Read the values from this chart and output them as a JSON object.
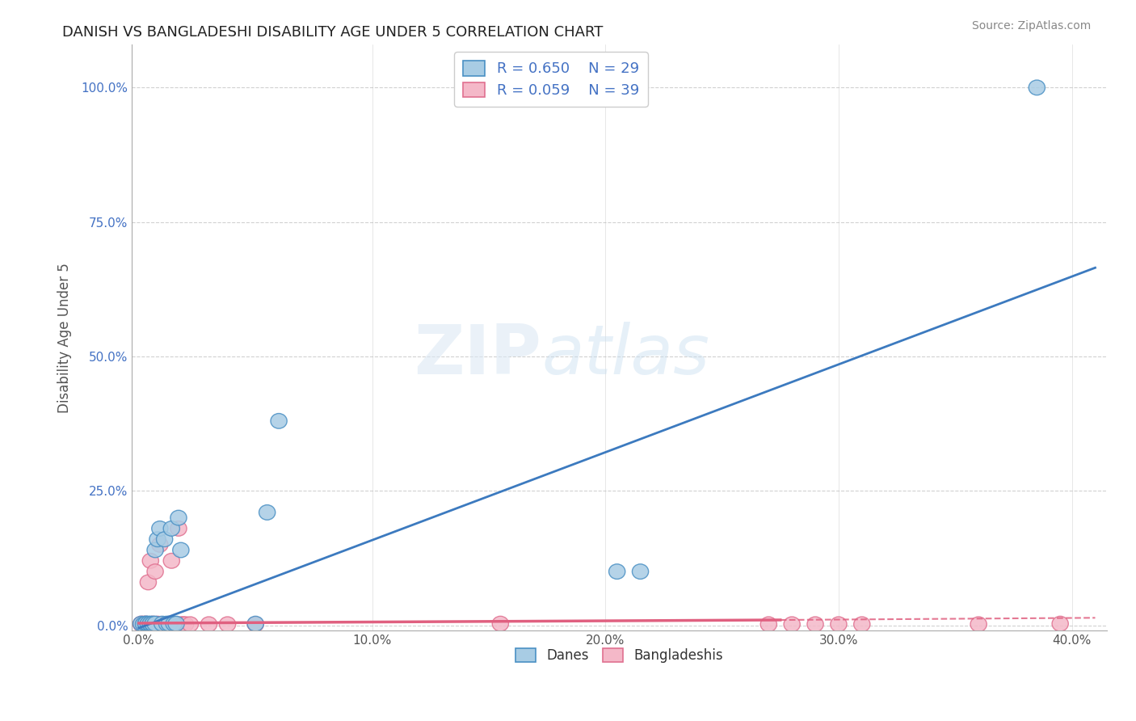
{
  "title": "DANISH VS BANGLADESHI DISABILITY AGE UNDER 5 CORRELATION CHART",
  "source": "Source: ZipAtlas.com",
  "ylabel": "Disability Age Under 5",
  "xlim": [
    -0.003,
    0.415
  ],
  "ylim": [
    -0.01,
    1.08
  ],
  "xticks": [
    0.0,
    0.1,
    0.2,
    0.3,
    0.4
  ],
  "yticks": [
    0.0,
    0.25,
    0.5,
    0.75,
    1.0
  ],
  "xtick_labels": [
    "0.0%",
    "10.0%",
    "20.0%",
    "30.0%",
    "40.0%"
  ],
  "ytick_labels": [
    "0.0%",
    "25.0%",
    "50.0%",
    "75.0%",
    "100.0%"
  ],
  "danes_color": "#a8cce4",
  "bangladesh_color": "#f4b8c8",
  "danes_edge_color": "#4a90c4",
  "bangladesh_edge_color": "#e07090",
  "danes_line_color": "#3c7abf",
  "bangladesh_line_color": "#e06080",
  "danes_R": 0.65,
  "danes_N": 29,
  "bangladesh_R": 0.059,
  "bangladesh_N": 39,
  "legend_text_color": "#4472c4",
  "danes_x": [
    0.001,
    0.002,
    0.003,
    0.003,
    0.004,
    0.004,
    0.005,
    0.005,
    0.006,
    0.006,
    0.007,
    0.007,
    0.008,
    0.009,
    0.01,
    0.011,
    0.012,
    0.013,
    0.014,
    0.015,
    0.016,
    0.017,
    0.018,
    0.05,
    0.055,
    0.06,
    0.205,
    0.215,
    0.385
  ],
  "danes_y": [
    0.003,
    0.002,
    0.003,
    0.003,
    0.002,
    0.003,
    0.002,
    0.003,
    0.002,
    0.003,
    0.003,
    0.14,
    0.16,
    0.18,
    0.003,
    0.16,
    0.003,
    0.003,
    0.18,
    0.003,
    0.003,
    0.2,
    0.14,
    0.003,
    0.21,
    0.38,
    0.1,
    0.1,
    1.0
  ],
  "bangladesh_x": [
    0.001,
    0.001,
    0.002,
    0.002,
    0.003,
    0.003,
    0.004,
    0.004,
    0.005,
    0.005,
    0.006,
    0.006,
    0.007,
    0.008,
    0.008,
    0.009,
    0.01,
    0.011,
    0.012,
    0.013,
    0.014,
    0.015,
    0.016,
    0.017,
    0.018,
    0.019,
    0.02,
    0.022,
    0.03,
    0.038,
    0.05,
    0.155,
    0.27,
    0.28,
    0.29,
    0.3,
    0.31,
    0.36,
    0.395
  ],
  "bangladesh_y": [
    0.002,
    0.003,
    0.002,
    0.003,
    0.002,
    0.003,
    0.002,
    0.08,
    0.002,
    0.12,
    0.002,
    0.003,
    0.1,
    0.002,
    0.003,
    0.15,
    0.002,
    0.002,
    0.002,
    0.002,
    0.12,
    0.002,
    0.002,
    0.18,
    0.002,
    0.002,
    0.002,
    0.002,
    0.002,
    0.002,
    0.002,
    0.003,
    0.002,
    0.002,
    0.002,
    0.002,
    0.002,
    0.002,
    0.003
  ],
  "danes_line_x0": 0.0,
  "danes_line_x1": 0.41,
  "danes_line_y0": -0.005,
  "danes_line_y1": 0.665,
  "bang_line_x0": 0.0,
  "bang_line_x1": 0.275,
  "bang_line_x2": 0.41,
  "bang_line_y0": 0.004,
  "bang_line_y1": 0.01,
  "bang_line_y2": 0.014,
  "watermark_zip": "ZIP",
  "watermark_atlas": "atlas",
  "background_color": "#ffffff",
  "grid_color": "#cccccc"
}
